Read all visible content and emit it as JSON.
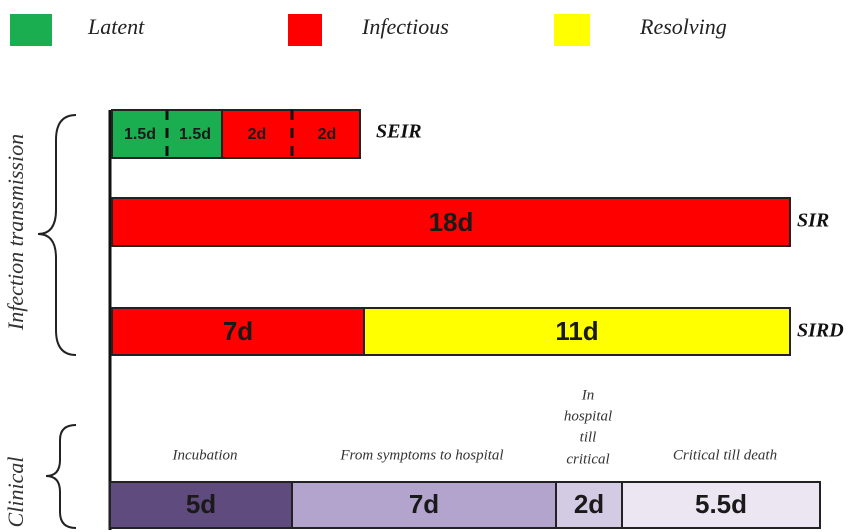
{
  "legend": [
    "Latent",
    "Infectious",
    "Resolving"
  ],
  "side_labels": {
    "transmission": "Infection transmission",
    "clinical": "Clinical"
  },
  "rows": [
    {
      "label": "SEIR",
      "segments": [
        "1.5d",
        "1.5d",
        "2d",
        "2d"
      ]
    },
    {
      "label": "SIR",
      "segments": [
        "18d"
      ]
    },
    {
      "label": "SIRD",
      "segments": [
        "7d",
        "11d"
      ]
    }
  ],
  "clinical": [
    {
      "label": [
        "Incubation"
      ],
      "duration": "5d"
    },
    {
      "label": [
        "From symptoms to hospital"
      ],
      "duration": "7d"
    },
    {
      "label": [
        "In",
        "hospital",
        "till",
        "critical"
      ],
      "duration": "2d"
    },
    {
      "label": [
        "Critical till death"
      ],
      "duration": "5.5d"
    }
  ]
}
